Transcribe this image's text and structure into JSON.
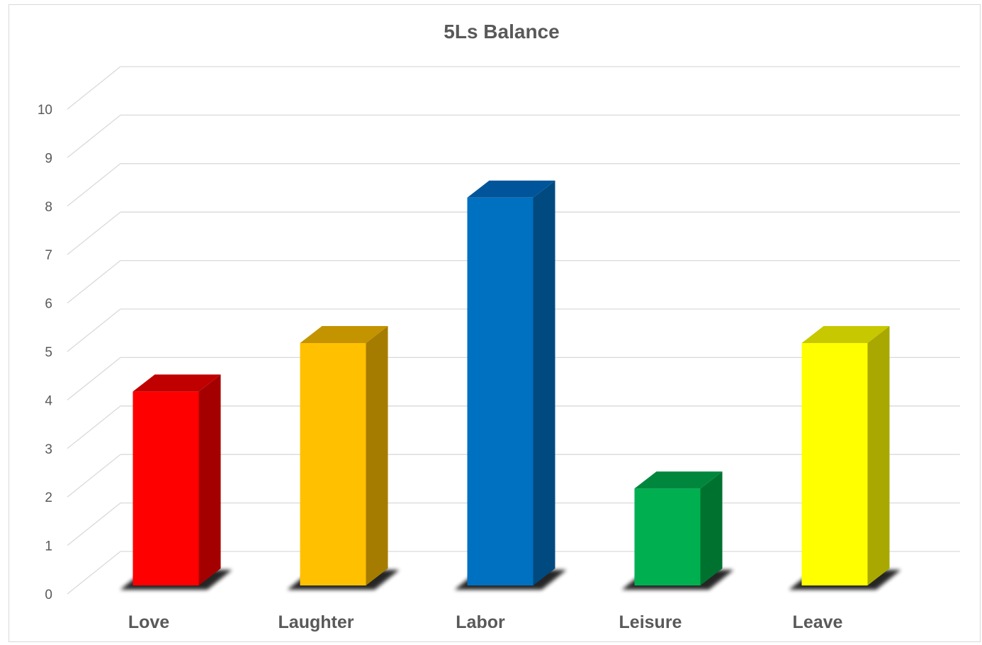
{
  "chart_data": {
    "type": "bar",
    "style": "3d-column",
    "title": "5Ls Balance",
    "xlabel": "",
    "ylabel": "",
    "categories": [
      "Love",
      "Laughter",
      "Labor",
      "Leisure",
      "Leave"
    ],
    "values": [
      4,
      5,
      8,
      2,
      5
    ],
    "colors": [
      "#ff0000",
      "#ffc000",
      "#0070c0",
      "#00b050",
      "#ffff00"
    ],
    "side_colors": [
      "#a50000",
      "#a57c00",
      "#004a80",
      "#00722f",
      "#a8a800"
    ],
    "top_colors": [
      "#c00000",
      "#c49300",
      "#00559a",
      "#00873d",
      "#c8c800"
    ],
    "ylim": [
      0,
      10
    ],
    "yticks": [
      0,
      1,
      2,
      3,
      4,
      5,
      6,
      7,
      8,
      9,
      10
    ],
    "grid": true,
    "gridline_color": "#d9d9d9",
    "text_color": "#595959",
    "legend": "none"
  }
}
